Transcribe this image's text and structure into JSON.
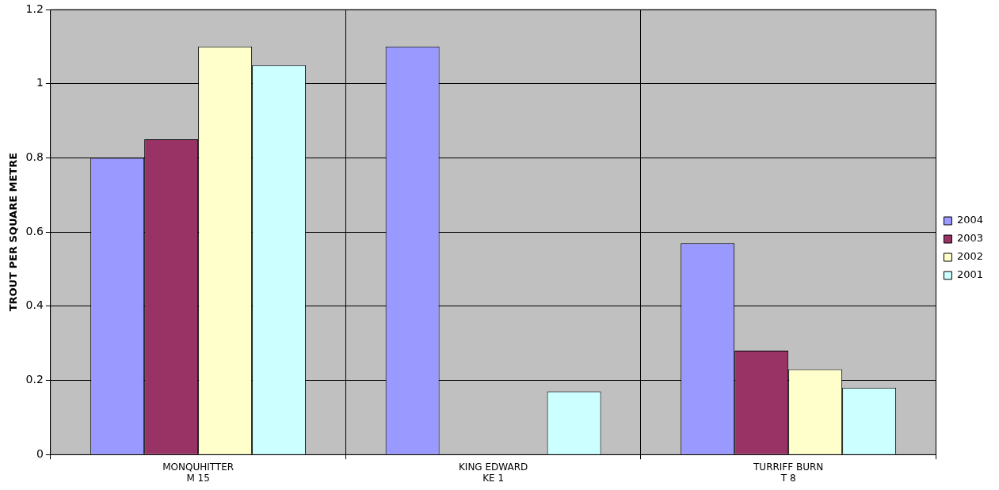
{
  "chart_data": {
    "type": "bar",
    "ylabel": "TROUT PER SQUARE METRE",
    "categories": [
      "MONQUHITTER\nM 15",
      "KING EDWARD\nKE 1",
      "TURRIFF BURN\nT 8"
    ],
    "series": [
      {
        "name": "2004",
        "color": "#9999ff",
        "values": [
          0.8,
          1.1,
          0.57
        ]
      },
      {
        "name": "2003",
        "color": "#993366",
        "values": [
          0.85,
          null,
          0.28
        ]
      },
      {
        "name": "2002",
        "color": "#ffffcc",
        "values": [
          1.1,
          null,
          0.23
        ]
      },
      {
        "name": "2001",
        "color": "#ccffff",
        "values": [
          1.05,
          0.17,
          0.18
        ]
      }
    ],
    "ylim": [
      0,
      1.2
    ],
    "yticks": [
      0,
      0.2,
      0.4,
      0.6,
      0.8,
      1,
      1.2
    ],
    "grid": true,
    "legend": "right"
  }
}
